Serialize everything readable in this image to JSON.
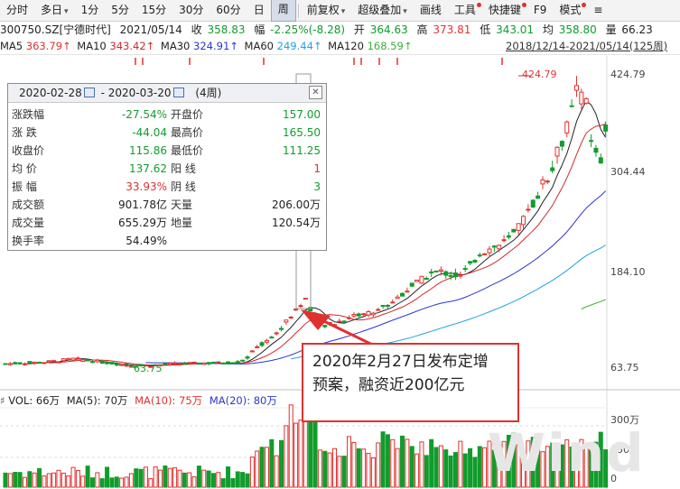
{
  "toolbar": {
    "items": [
      {
        "label": "分时"
      },
      {
        "label": "多日",
        "dropdown": true
      },
      {
        "label": "1分"
      },
      {
        "label": "5分"
      },
      {
        "label": "15分"
      },
      {
        "label": "30分"
      },
      {
        "label": "60分"
      },
      {
        "label": "日"
      },
      {
        "label": "周",
        "active": true
      },
      {
        "label": "前复权",
        "dropdown": true
      },
      {
        "label": "超级叠加",
        "dropdown": true
      },
      {
        "label": "画线"
      },
      {
        "label": "工具",
        "dot": true
      },
      {
        "label": "快捷键",
        "dot": true
      },
      {
        "label": "F9"
      },
      {
        "label": "模式",
        "dot": true
      },
      {
        "label": "≡"
      }
    ]
  },
  "quote": {
    "code": "300750.SZ[宁德时代]",
    "date": "2021/05/14",
    "close_label": "收",
    "close": "358.83",
    "change_label": "幅",
    "change": "-2.25%(-8.28)",
    "open_label": "开",
    "open": "364.63",
    "high_label": "高",
    "high": "373.81",
    "low_label": "低",
    "low": "343.01",
    "avg_label": "均",
    "avg": "358.80",
    "vol_label": "量",
    "vol": "66.23"
  },
  "ma": {
    "ma5_label": "MA5",
    "ma5": "363.79↑",
    "ma10_label": "MA10",
    "ma10": "343.42↑",
    "ma30_label": "MA30",
    "ma30": "324.91↑",
    "ma60_label": "MA60",
    "ma60": "249.44↑",
    "ma120_label": "MA120",
    "ma120": "168.59↑",
    "range": "2018/12/14-2021/05/14(125周)"
  },
  "price_axis": {
    "ticks": [
      "424.79",
      "304.44",
      "184.10",
      "63.75"
    ],
    "high_mark": "424.79",
    "low_mark": "63.75"
  },
  "vol_axis": {
    "ticks": [
      "300万",
      "150万",
      "0"
    ]
  },
  "infobox": {
    "start": "2020-02-28",
    "dash": "-",
    "end": "2020-03-20",
    "weeks": "(4周)",
    "close_btn": "✕",
    "left": [
      {
        "label": "涨跌幅",
        "value": "-27.54%",
        "color": "green"
      },
      {
        "label": "涨  跌",
        "value": "-44.04",
        "color": "green"
      },
      {
        "label": "收盘价",
        "value": "115.86",
        "color": "green"
      },
      {
        "label": "均  价",
        "value": "137.62",
        "color": "green"
      },
      {
        "label": "振  幅",
        "value": "33.93%",
        "color": "red"
      },
      {
        "label": "成交额",
        "value": "901.78亿",
        "color": "dark"
      },
      {
        "label": "成交量",
        "value": "655.29万",
        "color": "dark"
      },
      {
        "label": "换手率",
        "value": "54.49%",
        "color": "dark"
      }
    ],
    "right": [
      {
        "label": "开盘价",
        "value": "157.00",
        "color": "green"
      },
      {
        "label": "最高价",
        "value": "165.50",
        "color": "green"
      },
      {
        "label": "最低价",
        "value": "111.25",
        "color": "green"
      },
      {
        "label": "阳  线",
        "value": "1",
        "color": "red"
      },
      {
        "label": "阴  线",
        "value": "3",
        "color": "green"
      },
      {
        "label": "天量",
        "value": "206.00万",
        "color": "dark"
      },
      {
        "label": "地量",
        "value": "120.54万",
        "color": "dark"
      }
    ]
  },
  "volume": {
    "vol_label": "VOL: 66万",
    "ma5_label": "MA(5): 70万",
    "ma10_label": "MA(10): 75万",
    "ma20_label": "MA(20): 80万"
  },
  "annotation": {
    "line1": "2020年2月27日发布定增",
    "line2": "预案，融资近200亿元"
  },
  "watermark": "Wind",
  "colors": {
    "up": "#e0312f",
    "down": "#119c2c",
    "ma5": "#222222",
    "ma10": "#d4282a",
    "ma30": "#2b35d6",
    "ma60": "#1fa2e0",
    "ma120": "#3db036",
    "accent": "#e0312f"
  }
}
